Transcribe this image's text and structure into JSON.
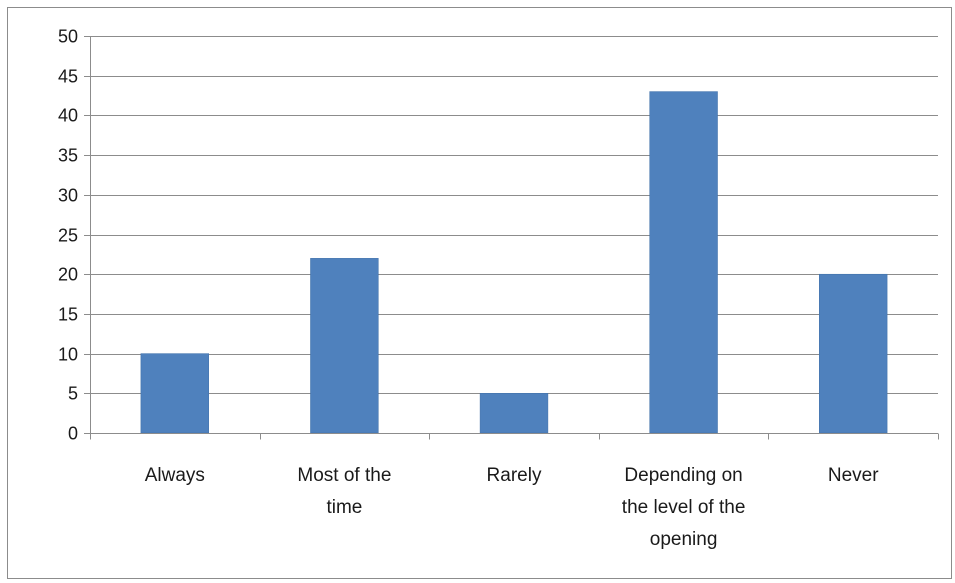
{
  "chart_data": {
    "type": "bar",
    "categories": [
      "Always",
      "Most of the time",
      "Rarely",
      "Depending on the level of the opening",
      "Never"
    ],
    "category_lines": [
      [
        "Always"
      ],
      [
        "Most of the",
        "time"
      ],
      [
        "Rarely"
      ],
      [
        "Depending on",
        "the level of the",
        "opening"
      ],
      [
        "Never"
      ]
    ],
    "values": [
      10,
      22,
      5,
      43,
      20
    ],
    "yticks": [
      "0",
      "5",
      "10",
      "15",
      "20",
      "25",
      "30",
      "35",
      "40",
      "45",
      "50"
    ],
    "ylim": [
      0,
      50
    ],
    "grid": true,
    "legend": "none",
    "colors": {
      "bar": "#4f81bd",
      "bar_edge": "#3f6fa8",
      "grid": "#8c8c8c",
      "axis": "#8c8c8c",
      "frame": "#8c8c8c"
    }
  }
}
